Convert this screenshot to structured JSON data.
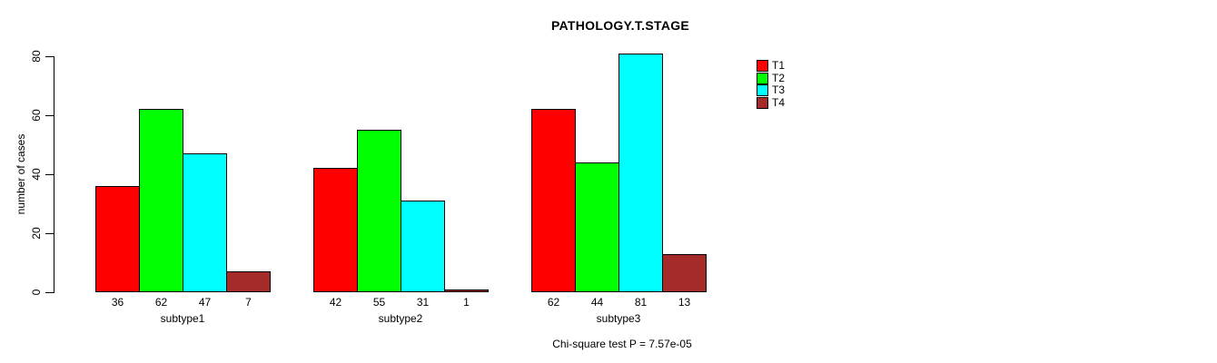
{
  "chart_data": {
    "type": "bar",
    "title": "PATHOLOGY.T.STAGE",
    "xlabel": "",
    "ylabel": "number of cases",
    "categories": [
      "subtype1",
      "subtype2",
      "subtype3"
    ],
    "series": [
      {
        "name": "T1",
        "color": "#FF0000",
        "values": [
          36,
          42,
          62
        ]
      },
      {
        "name": "T2",
        "color": "#00FF00",
        "values": [
          62,
          55,
          44
        ]
      },
      {
        "name": "T3",
        "color": "#00FFFF",
        "values": [
          47,
          31,
          81
        ]
      },
      {
        "name": "T4",
        "color": "#A52A2A",
        "values": [
          7,
          1,
          13
        ]
      }
    ],
    "ylim": [
      0,
      80
    ],
    "yticks": [
      0,
      20,
      40,
      60,
      80
    ],
    "grid": false,
    "legend_position": "right",
    "bar_value_labels": true,
    "bar_border_color": "#000000",
    "annotation": "Chi-square test P = 7.57e-05"
  }
}
